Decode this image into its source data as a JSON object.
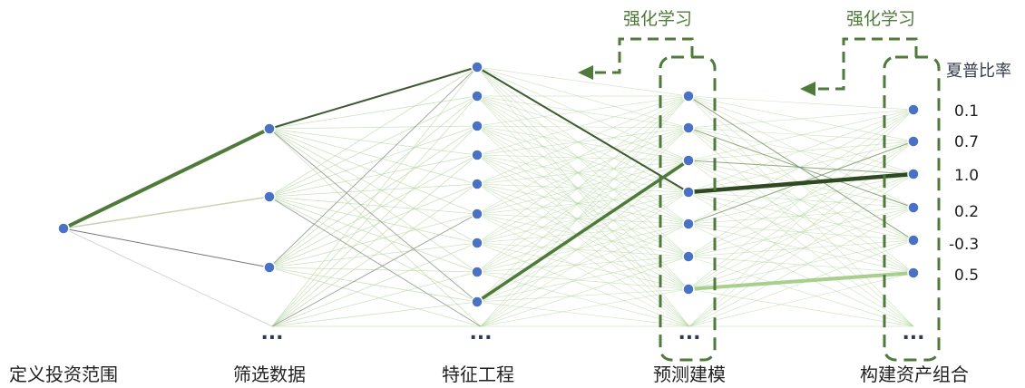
{
  "stages": [
    {
      "id": "scope",
      "label": "定义投资范围"
    },
    {
      "id": "filter",
      "label": "筛选数据"
    },
    {
      "id": "features",
      "label": "特征工程"
    },
    {
      "id": "model",
      "label": "预测建模"
    },
    {
      "id": "portfolio",
      "label": "构建资产组合"
    }
  ],
  "ellipsis": "...",
  "reinforcement": [
    {
      "id": "rl-model",
      "label": "强化学习"
    },
    {
      "id": "rl-portfolio",
      "label": "强化学习"
    }
  ],
  "sharpe": {
    "title": "夏普比率",
    "values": [
      "0.1",
      "0.7",
      "1.0",
      "0.2",
      "-0.3",
      "0.5"
    ]
  },
  "colors": {
    "node": "#4a72c4",
    "highlight": "#4e7a3a",
    "light_line": "#b6d5a2",
    "dashed_box": "#4e7a3a"
  }
}
